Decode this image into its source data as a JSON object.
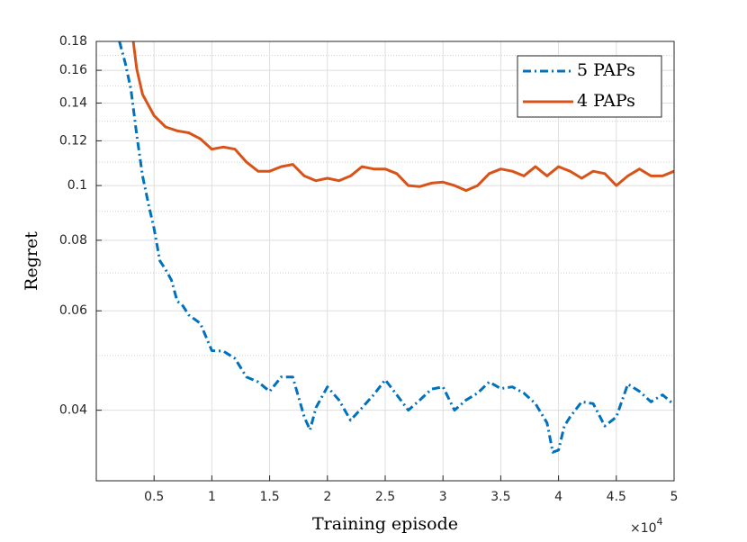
{
  "chart_data": {
    "type": "line",
    "ylabel": "Regret",
    "xlabel": "Training episode",
    "x_multiplier": {
      "base": "×10",
      "exponent": "4"
    },
    "log_y": true,
    "grid": true,
    "minor_grid": true,
    "legend": "northeast",
    "xlim": [
      0,
      5
    ],
    "xticks": [
      0.5,
      1,
      1.5,
      2,
      2.5,
      3,
      3.5,
      4,
      4.5,
      5
    ],
    "ylim": [
      0.03,
      0.18
    ],
    "yticks": [
      0.04,
      0.06,
      0.08,
      0.1,
      0.12,
      0.14,
      0.16,
      0.18
    ],
    "minor_yticks": [
      0.03,
      0.05,
      0.07,
      0.09,
      0.11,
      0.13,
      0.15,
      0.17
    ],
    "series": [
      {
        "name": "5 PAPs",
        "color": "#0072bd",
        "line_style": "dashdot",
        "x": [
          0.2,
          0.25,
          0.3,
          0.35,
          0.4,
          0.45,
          0.5,
          0.55,
          0.6,
          0.65,
          0.7,
          0.75,
          0.8,
          0.9,
          1.0,
          1.1,
          1.2,
          1.3,
          1.4,
          1.5,
          1.6,
          1.7,
          1.8,
          1.85,
          1.9,
          2.0,
          2.1,
          2.2,
          2.3,
          2.4,
          2.5,
          2.6,
          2.7,
          2.8,
          2.9,
          3.0,
          3.1,
          3.2,
          3.3,
          3.4,
          3.5,
          3.6,
          3.7,
          3.8,
          3.9,
          3.95,
          4.0,
          4.05,
          4.1,
          4.2,
          4.3,
          4.4,
          4.5,
          4.6,
          4.7,
          4.8,
          4.9,
          5.0
        ],
        "values": [
          0.18,
          0.165,
          0.148,
          0.123,
          0.104,
          0.093,
          0.0839,
          0.0736,
          0.071,
          0.068,
          0.0624,
          0.0612,
          0.059,
          0.057,
          0.051,
          0.0509,
          0.0494,
          0.0458,
          0.0449,
          0.0432,
          0.0458,
          0.0458,
          0.0389,
          0.0369,
          0.0404,
          0.044,
          0.0417,
          0.0384,
          0.0404,
          0.0426,
          0.0453,
          0.0426,
          0.04,
          0.0417,
          0.0436,
          0.044,
          0.04,
          0.0417,
          0.0429,
          0.0449,
          0.0437,
          0.044,
          0.0429,
          0.0411,
          0.038,
          0.0337,
          0.034,
          0.0375,
          0.0389,
          0.0414,
          0.0411,
          0.0375,
          0.0389,
          0.0445,
          0.0432,
          0.0414,
          0.0426,
          0.0409
        ]
      },
      {
        "name": "4 PAPs",
        "color": "#d95319",
        "line_style": "solid",
        "x": [
          0.32,
          0.35,
          0.4,
          0.5,
          0.6,
          0.7,
          0.8,
          0.9,
          1.0,
          1.1,
          1.2,
          1.3,
          1.4,
          1.5,
          1.6,
          1.7,
          1.8,
          1.9,
          2.0,
          2.1,
          2.2,
          2.3,
          2.4,
          2.5,
          2.6,
          2.7,
          2.8,
          2.9,
          3.0,
          3.1,
          3.2,
          3.3,
          3.4,
          3.5,
          3.6,
          3.7,
          3.8,
          3.9,
          4.0,
          4.1,
          4.2,
          4.3,
          4.4,
          4.5,
          4.6,
          4.7,
          4.8,
          4.9,
          5.0
        ],
        "values": [
          0.18,
          0.161,
          0.145,
          0.133,
          0.127,
          0.125,
          0.124,
          0.121,
          0.116,
          0.117,
          0.116,
          0.11,
          0.106,
          0.106,
          0.108,
          0.109,
          0.104,
          0.102,
          0.103,
          0.102,
          0.104,
          0.108,
          0.107,
          0.107,
          0.105,
          0.1,
          0.0996,
          0.101,
          0.1014,
          0.1,
          0.098,
          0.1,
          0.105,
          0.107,
          0.106,
          0.104,
          0.108,
          0.104,
          0.108,
          0.106,
          0.103,
          0.106,
          0.105,
          0.1,
          0.104,
          0.107,
          0.104,
          0.104,
          0.106
        ]
      }
    ]
  }
}
